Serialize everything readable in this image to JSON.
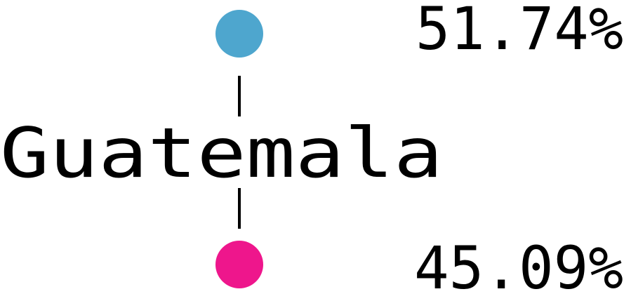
{
  "chart_data": {
    "type": "dot",
    "category": "Guatemala",
    "series": [
      {
        "value": 51.74,
        "label": "51.74%",
        "color": "#4ea6ce"
      },
      {
        "value": 45.09,
        "label": "45.09%",
        "color": "#ee168c"
      }
    ],
    "connector_color": "#000000"
  }
}
